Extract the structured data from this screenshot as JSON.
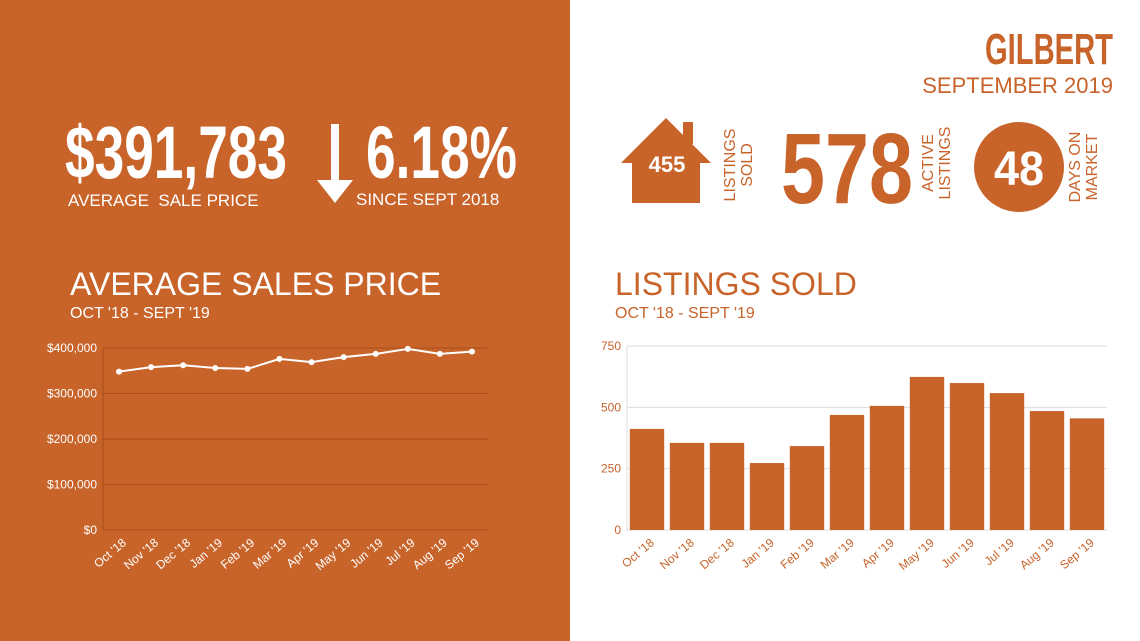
{
  "header": {
    "city": "GILBERT",
    "period": "SEPTEMBER 2019"
  },
  "summary": {
    "price": "$391,783",
    "price_label": "AVERAGE  SALE PRICE",
    "change": "6.18%",
    "change_label": "SINCE SEPT 2018"
  },
  "stats": [
    {
      "value": "455",
      "label": [
        "LISTINGS",
        "SOLD"
      ]
    },
    {
      "value": "578",
      "label": [
        "ACTIVE",
        "LISTINGS"
      ]
    },
    {
      "value": "48",
      "label": [
        "DAYS ON",
        "MARKET"
      ]
    }
  ],
  "chart_data": [
    {
      "type": "line",
      "title": "AVERAGE SALES PRICE",
      "subtitle": "OCT '18 - SEPT '19",
      "categories": [
        "Oct '18",
        "Nov '18",
        "Dec '18",
        "Jan '19",
        "Feb '19",
        "Mar '19",
        "Apr '19",
        "May '19",
        "Jun '19",
        "Jul '19",
        "Aug '19",
        "Sep '19"
      ],
      "series": [
        {
          "name": "Average Sales Price",
          "color": "#ffffff",
          "values": [
            348000,
            358000,
            362000,
            356000,
            354000,
            376000,
            369000,
            380000,
            387000,
            398000,
            387000,
            392000
          ]
        }
      ],
      "ylim": [
        0,
        400000
      ],
      "yticks": [
        {
          "value": 0,
          "label": "$0"
        },
        {
          "value": 100000,
          "label": "$100,000"
        },
        {
          "value": 200000,
          "label": "$200,000"
        },
        {
          "value": 300000,
          "label": "$300,000"
        },
        {
          "value": 400000,
          "label": "$400,000"
        }
      ],
      "grid": true
    },
    {
      "type": "bar",
      "title": "LISTINGS SOLD",
      "subtitle": "OCT '18 - SEPT '19",
      "categories": [
        "Oct '18",
        "Nov '18",
        "Dec '18",
        "Jan '19",
        "Feb '19",
        "Mar '19",
        "Apr '19",
        "May '19",
        "Jun '19",
        "Jul '19",
        "Aug '19",
        "Sep '19"
      ],
      "values": [
        412,
        355,
        355,
        273,
        342,
        469,
        506,
        624,
        599,
        558,
        485,
        455
      ],
      "color": "#c8632a",
      "ylim": [
        0,
        750
      ],
      "yticks": [
        0,
        250,
        500,
        750
      ],
      "grid": true
    }
  ]
}
